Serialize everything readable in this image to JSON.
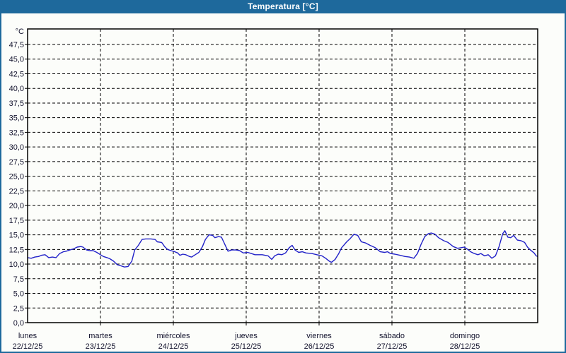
{
  "window": {
    "title": "Temperatura [°C]"
  },
  "colors": {
    "titlebar": "#1E699C",
    "frame": "#1E699C",
    "background": "#FCFDFA",
    "line": "#2222C8",
    "grid": "#000000",
    "text": "#14142E"
  },
  "chart_data": {
    "type": "line",
    "title": "Temperatura [°C]",
    "xlabel": "",
    "ylabel": "°C",
    "ylim": [
      0,
      50
    ],
    "ytick_step": 2.5,
    "grid": "dashed",
    "legend": "none",
    "ytick_labels": [
      "0,0",
      "2,5",
      "5,0",
      "7,5",
      "10,0",
      "12,5",
      "15,0",
      "17,5",
      "20,0",
      "22,5",
      "25,0",
      "27,5",
      "30,0",
      "32,5",
      "35,0",
      "37,5",
      "40,0",
      "42,5",
      "45,0",
      "47,5"
    ],
    "x_days": [
      {
        "name": "lunes",
        "date": "22/12/25"
      },
      {
        "name": "martes",
        "date": "23/12/25"
      },
      {
        "name": "miércoles",
        "date": "24/12/25"
      },
      {
        "name": "jueves",
        "date": "25/12/25"
      },
      {
        "name": "viernes",
        "date": "26/12/25"
      },
      {
        "name": "sábado",
        "date": "27/12/25"
      },
      {
        "name": "domingo",
        "date": "28/12/25"
      }
    ],
    "series": [
      {
        "name": "Temperatura [°C]",
        "color": "#2222C8",
        "points": [
          [
            0.0,
            11.1
          ],
          [
            0.05,
            11.0
          ],
          [
            0.1,
            11.2
          ],
          [
            0.15,
            11.3
          ],
          [
            0.19,
            11.5
          ],
          [
            0.24,
            11.6
          ],
          [
            0.29,
            11.1
          ],
          [
            0.34,
            11.2
          ],
          [
            0.39,
            11.1
          ],
          [
            0.44,
            11.8
          ],
          [
            0.49,
            12.1
          ],
          [
            0.53,
            12.2
          ],
          [
            0.58,
            12.4
          ],
          [
            0.63,
            12.6
          ],
          [
            0.68,
            12.9
          ],
          [
            0.73,
            13.0
          ],
          [
            0.76,
            12.9
          ],
          [
            0.81,
            12.4
          ],
          [
            0.85,
            12.3
          ],
          [
            0.9,
            12.3
          ],
          [
            0.95,
            12.0
          ],
          [
            1.0,
            11.6
          ],
          [
            1.04,
            11.3
          ],
          [
            1.09,
            11.1
          ],
          [
            1.13,
            10.9
          ],
          [
            1.18,
            10.5
          ],
          [
            1.23,
            9.9
          ],
          [
            1.28,
            9.7
          ],
          [
            1.33,
            9.5
          ],
          [
            1.38,
            9.6
          ],
          [
            1.43,
            10.5
          ],
          [
            1.47,
            12.4
          ],
          [
            1.52,
            13.2
          ],
          [
            1.57,
            14.2
          ],
          [
            1.62,
            14.3
          ],
          [
            1.69,
            14.3
          ],
          [
            1.75,
            14.2
          ],
          [
            1.78,
            13.8
          ],
          [
            1.84,
            13.7
          ],
          [
            1.88,
            13.0
          ],
          [
            1.92,
            12.5
          ],
          [
            1.97,
            12.3
          ],
          [
            2.02,
            12.1
          ],
          [
            2.06,
            11.9
          ],
          [
            2.09,
            11.5
          ],
          [
            2.13,
            11.7
          ],
          [
            2.17,
            11.6
          ],
          [
            2.22,
            11.3
          ],
          [
            2.25,
            11.2
          ],
          [
            2.3,
            11.6
          ],
          [
            2.35,
            12.0
          ],
          [
            2.4,
            13.0
          ],
          [
            2.44,
            14.2
          ],
          [
            2.49,
            15.0
          ],
          [
            2.54,
            14.9
          ],
          [
            2.57,
            14.5
          ],
          [
            2.62,
            14.7
          ],
          [
            2.66,
            14.6
          ],
          [
            2.69,
            13.8
          ],
          [
            2.72,
            13.0
          ],
          [
            2.75,
            12.2
          ],
          [
            2.8,
            12.4
          ],
          [
            2.86,
            12.4
          ],
          [
            2.91,
            12.3
          ],
          [
            2.96,
            11.9
          ],
          [
            3.02,
            12.0
          ],
          [
            3.07,
            11.8
          ],
          [
            3.12,
            11.6
          ],
          [
            3.22,
            11.6
          ],
          [
            3.3,
            11.4
          ],
          [
            3.35,
            10.8
          ],
          [
            3.39,
            11.4
          ],
          [
            3.44,
            11.7
          ],
          [
            3.49,
            11.6
          ],
          [
            3.54,
            11.9
          ],
          [
            3.59,
            12.8
          ],
          [
            3.63,
            13.2
          ],
          [
            3.67,
            12.4
          ],
          [
            3.72,
            12.0
          ],
          [
            3.77,
            12.1
          ],
          [
            3.82,
            11.9
          ],
          [
            3.9,
            11.8
          ],
          [
            3.97,
            11.6
          ],
          [
            4.04,
            11.4
          ],
          [
            4.09,
            11.0
          ],
          [
            4.14,
            10.5
          ],
          [
            4.17,
            10.3
          ],
          [
            4.22,
            10.8
          ],
          [
            4.27,
            11.8
          ],
          [
            4.31,
            12.8
          ],
          [
            4.38,
            13.8
          ],
          [
            4.43,
            14.4
          ],
          [
            4.48,
            15.1
          ],
          [
            4.53,
            14.9
          ],
          [
            4.58,
            13.8
          ],
          [
            4.64,
            13.6
          ],
          [
            4.7,
            13.2
          ],
          [
            4.77,
            12.8
          ],
          [
            4.84,
            12.1
          ],
          [
            4.9,
            12.0
          ],
          [
            4.94,
            12.1
          ],
          [
            4.98,
            11.8
          ],
          [
            5.04,
            11.7
          ],
          [
            5.11,
            11.5
          ],
          [
            5.18,
            11.3
          ],
          [
            5.24,
            11.2
          ],
          [
            5.3,
            11.0
          ],
          [
            5.35,
            11.8
          ],
          [
            5.4,
            13.4
          ],
          [
            5.45,
            14.7
          ],
          [
            5.5,
            15.2
          ],
          [
            5.54,
            15.3
          ],
          [
            5.59,
            15.1
          ],
          [
            5.64,
            14.5
          ],
          [
            5.71,
            14.0
          ],
          [
            5.77,
            13.7
          ],
          [
            5.84,
            13.0
          ],
          [
            5.9,
            12.7
          ],
          [
            5.95,
            12.8
          ],
          [
            5.99,
            12.9
          ],
          [
            6.03,
            12.6
          ],
          [
            6.08,
            12.1
          ],
          [
            6.13,
            11.8
          ],
          [
            6.18,
            11.6
          ],
          [
            6.22,
            11.8
          ],
          [
            6.27,
            11.4
          ],
          [
            6.32,
            11.6
          ],
          [
            6.37,
            11.0
          ],
          [
            6.42,
            11.4
          ],
          [
            6.47,
            13.0
          ],
          [
            6.52,
            15.2
          ],
          [
            6.55,
            15.7
          ],
          [
            6.59,
            14.6
          ],
          [
            6.63,
            14.5
          ],
          [
            6.67,
            14.9
          ],
          [
            6.72,
            14.1
          ],
          [
            6.77,
            14.0
          ],
          [
            6.82,
            13.7
          ],
          [
            6.86,
            12.9
          ],
          [
            6.9,
            12.4
          ],
          [
            6.95,
            11.9
          ],
          [
            6.98,
            11.4
          ],
          [
            7.0,
            11.3
          ]
        ]
      }
    ]
  }
}
